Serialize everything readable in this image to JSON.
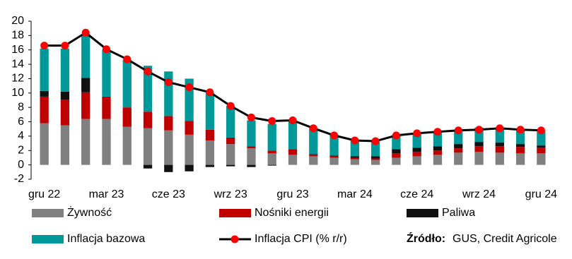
{
  "chart_data": {
    "type": "bar-line",
    "categories": [
      "gru 22",
      null,
      null,
      "mar 23",
      null,
      null,
      "cze 23",
      null,
      null,
      "wrz 23",
      null,
      null,
      "gru 23",
      null,
      null,
      "mar 24",
      null,
      null,
      "cze 24",
      null,
      null,
      "wrz 24",
      null,
      null,
      "gru 24"
    ],
    "series": [
      {
        "name": "Żywność",
        "color": "#808080",
        "kind": "bar",
        "values": [
          5.8,
          5.5,
          6.4,
          6.4,
          5.3,
          5.1,
          4.8,
          4.2,
          3.4,
          2.9,
          2.3,
          1.6,
          1.4,
          1.2,
          1.0,
          0.8,
          0.7,
          1.0,
          1.2,
          1.4,
          1.7,
          1.8,
          1.7,
          1.6,
          1.6
        ]
      },
      {
        "name": "Nośniki energii",
        "color": "#c00000",
        "kind": "bar",
        "values": [
          3.7,
          3.6,
          3.7,
          3.1,
          2.7,
          2.3,
          2.0,
          1.9,
          1.5,
          0.9,
          0.3,
          0.4,
          0.8,
          0.2,
          0.2,
          0.2,
          0.2,
          0.6,
          0.6,
          0.6,
          0.6,
          0.8,
          0.9,
          0.9,
          0.8
        ]
      },
      {
        "name": "Paliwa",
        "color": "#111111",
        "kind": "bar",
        "values": [
          0.8,
          1.1,
          2.0,
          0.0,
          0.0,
          -0.5,
          -1.0,
          -0.9,
          -0.3,
          -0.2,
          -0.3,
          -0.1,
          0.0,
          0.1,
          0.1,
          0.2,
          0.3,
          0.6,
          0.6,
          0.6,
          0.6,
          0.6,
          0.5,
          0.4,
          0.3
        ]
      },
      {
        "name": "Inflacja bazowa",
        "color": "#009999",
        "kind": "bar",
        "values": [
          5.9,
          6.0,
          6.1,
          6.5,
          6.6,
          6.4,
          6.2,
          5.9,
          5.1,
          4.4,
          3.6,
          3.7,
          4.0,
          3.6,
          2.9,
          2.3,
          2.0,
          2.0,
          2.0,
          2.0,
          2.0,
          2.0,
          2.1,
          2.0,
          2.0
        ]
      },
      {
        "name": "Inflacja CPI (% r/r)",
        "color": "#000000",
        "marker_color": "#ff0000",
        "kind": "line",
        "values": [
          16.6,
          16.6,
          18.4,
          16.1,
          14.7,
          13.0,
          11.5,
          10.8,
          10.1,
          8.2,
          6.6,
          6.1,
          6.2,
          5.1,
          4.1,
          3.4,
          3.3,
          4.1,
          4.4,
          4.6,
          4.8,
          4.9,
          5.1,
          4.9,
          4.8
        ]
      }
    ],
    "ylim": [
      -2,
      20
    ],
    "yticks": [
      -2,
      0,
      2,
      4,
      6,
      8,
      10,
      12,
      14,
      16,
      18,
      20
    ],
    "source_label": "Źródło:",
    "source_text": "GUS, Credit Agricole"
  }
}
